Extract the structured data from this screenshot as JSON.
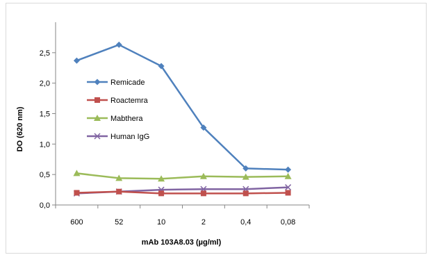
{
  "chart_data": {
    "type": "line",
    "title": "",
    "xlabel": "mAb 103A8.03 (µg/ml)",
    "ylabel": "DO (620 nm)",
    "categories": [
      "600",
      "52",
      "10",
      "2",
      "0,4",
      "0,08"
    ],
    "yticks": [
      "0,0",
      "0,5",
      "1,0",
      "1,5",
      "2,0",
      "2,5"
    ],
    "ylim": [
      0,
      3.0
    ],
    "grid": false,
    "legend_position": "left-inside",
    "series": [
      {
        "name": "Remicade",
        "color": "#4f81bd",
        "marker": "diamond",
        "values": [
          2.37,
          2.63,
          2.28,
          1.27,
          0.6,
          0.58
        ]
      },
      {
        "name": "Roactemra",
        "color": "#c0504d",
        "marker": "square",
        "values": [
          0.2,
          0.22,
          0.19,
          0.19,
          0.19,
          0.2
        ]
      },
      {
        "name": "Mabthera",
        "color": "#9bbb59",
        "marker": "triangle",
        "values": [
          0.52,
          0.44,
          0.43,
          0.47,
          0.46,
          0.47
        ]
      },
      {
        "name": "Human IgG",
        "color": "#8064a2",
        "marker": "x",
        "values": [
          0.19,
          0.22,
          0.25,
          0.26,
          0.26,
          0.29
        ]
      }
    ]
  }
}
